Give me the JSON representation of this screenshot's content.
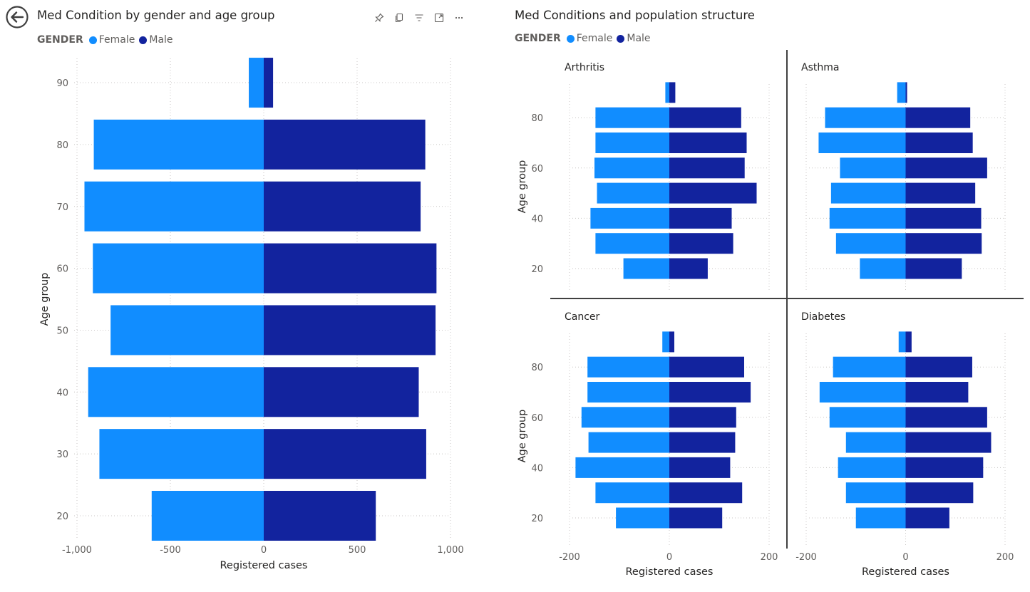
{
  "navigation": {
    "back_icon": "back-arrow-icon"
  },
  "header_icons": [
    "pin-icon",
    "copy-icon",
    "filter-icon",
    "focus-mode-icon",
    "more-options-icon"
  ],
  "colors": {
    "female": "#118DFF",
    "male": "#12239E",
    "grid": "#c8c6c4",
    "axis_text": "#605e5c",
    "divider": "#404040"
  },
  "left_visual": {
    "title": "Med Condition by gender and age group",
    "legend": {
      "title": "GENDER",
      "items": [
        "Female",
        "Male"
      ]
    }
  },
  "right_visual": {
    "title": "Med Conditions and population structure",
    "legend": {
      "title": "GENDER",
      "items": [
        "Female",
        "Male"
      ]
    }
  },
  "chart_data": [
    {
      "type": "bar",
      "orientation": "horizontal",
      "title": "Med Condition by gender and age group",
      "xlabel": "Registered cases",
      "ylabel": "Age group",
      "xlim": [
        -1000,
        1000
      ],
      "x_ticks": [
        -1000,
        -500,
        0,
        500,
        1000
      ],
      "x_tick_labels": [
        "-1,000",
        "-500",
        "0",
        "500",
        "1,000"
      ],
      "y_ticks": [
        20,
        30,
        40,
        50,
        60,
        70,
        80,
        90
      ],
      "grid": true,
      "legend_position": "top-left",
      "categories": [
        20,
        30,
        40,
        50,
        60,
        70,
        80,
        90
      ],
      "series": [
        {
          "name": "Female",
          "values": [
            -600,
            -880,
            -940,
            -820,
            -915,
            -960,
            -910,
            -80
          ]
        },
        {
          "name": "Male",
          "values": [
            600,
            870,
            830,
            920,
            925,
            840,
            865,
            50
          ]
        }
      ]
    },
    {
      "type": "bar",
      "orientation": "horizontal",
      "title": "Arthritis",
      "xlabel": "",
      "ylabel": "Age group",
      "xlim": [
        -200,
        200
      ],
      "x_ticks": [
        -200,
        0,
        200
      ],
      "y_ticks": [
        20,
        40,
        60,
        80
      ],
      "grid": true,
      "categories": [
        20,
        30,
        40,
        50,
        60,
        70,
        80,
        90
      ],
      "series": [
        {
          "name": "Female",
          "values": [
            -92,
            -148,
            -158,
            -145,
            -150,
            -148,
            -148,
            -8
          ]
        },
        {
          "name": "Male",
          "values": [
            77,
            128,
            125,
            175,
            151,
            155,
            144,
            12
          ]
        }
      ]
    },
    {
      "type": "bar",
      "orientation": "horizontal",
      "title": "Asthma",
      "xlabel": "",
      "ylabel": "",
      "xlim": [
        -200,
        200
      ],
      "x_ticks": [
        -200,
        0,
        200
      ],
      "y_ticks": [
        20,
        40,
        60,
        80
      ],
      "grid": true,
      "categories": [
        20,
        30,
        40,
        50,
        60,
        70,
        80,
        90
      ],
      "series": [
        {
          "name": "Female",
          "values": [
            -92,
            -140,
            -153,
            -150,
            -132,
            -175,
            -162,
            -17
          ]
        },
        {
          "name": "Male",
          "values": [
            113,
            153,
            152,
            140,
            164,
            135,
            130,
            3
          ]
        }
      ]
    },
    {
      "type": "bar",
      "orientation": "horizontal",
      "title": "Cancer",
      "xlabel": "Registered cases",
      "ylabel": "Age group",
      "xlim": [
        -200,
        200
      ],
      "x_ticks": [
        -200,
        0,
        200
      ],
      "x_tick_labels": [
        "-200",
        "0",
        "200"
      ],
      "y_ticks": [
        20,
        40,
        60,
        80
      ],
      "grid": true,
      "categories": [
        20,
        30,
        40,
        50,
        60,
        70,
        80,
        90
      ],
      "series": [
        {
          "name": "Female",
          "values": [
            -107,
            -148,
            -188,
            -162,
            -176,
            -164,
            -164,
            -14
          ]
        },
        {
          "name": "Male",
          "values": [
            106,
            146,
            122,
            132,
            134,
            163,
            150,
            10
          ]
        }
      ]
    },
    {
      "type": "bar",
      "orientation": "horizontal",
      "title": "Diabetes",
      "xlabel": "Registered cases",
      "ylabel": "",
      "xlim": [
        -200,
        200
      ],
      "x_ticks": [
        -200,
        0,
        200
      ],
      "x_tick_labels": [
        "-200",
        "0",
        "200"
      ],
      "y_ticks": [
        20,
        40,
        60,
        80
      ],
      "grid": true,
      "categories": [
        20,
        30,
        40,
        50,
        60,
        70,
        80,
        90
      ],
      "series": [
        {
          "name": "Female",
          "values": [
            -100,
            -120,
            -136,
            -120,
            -153,
            -173,
            -146,
            -14
          ]
        },
        {
          "name": "Male",
          "values": [
            88,
            136,
            156,
            172,
            164,
            126,
            134,
            12
          ]
        }
      ]
    }
  ]
}
